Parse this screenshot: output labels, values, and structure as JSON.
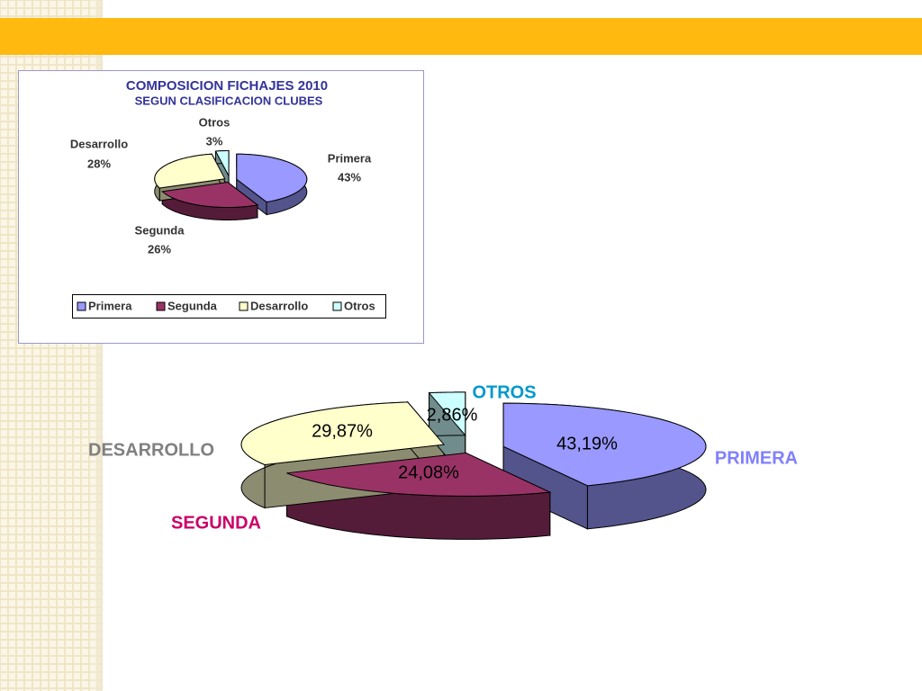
{
  "chart_data": [
    {
      "type": "pie3d",
      "title": "COMPOSICION FICHAJES 2010",
      "subtitle": "SEGUN CLASIFICACION CLUBES",
      "categories": [
        "Primera",
        "Segunda",
        "Desarrollo",
        "Otros"
      ],
      "values": [
        43,
        26,
        28,
        3
      ],
      "value_labels": [
        "43%",
        "26%",
        "28%",
        "3%"
      ],
      "colors": [
        "#9999ff",
        "#993366",
        "#ffffcc",
        "#ccffff"
      ],
      "legend": "bottom"
    },
    {
      "type": "pie3d",
      "categories": [
        "PRIMERA",
        "SEGUNDA",
        "DESARROLLO",
        "OTROS"
      ],
      "values": [
        43.19,
        24.08,
        29.87,
        2.86
      ],
      "value_labels": [
        "43,19%",
        "24,08%",
        "29,87%",
        "2,86%"
      ],
      "colors": [
        "#9999ff",
        "#993366",
        "#ffffcc",
        "#ccffff"
      ],
      "label_colors": [
        "#8080ff",
        "#cc0066",
        "#808080",
        "#0099cc"
      ]
    }
  ]
}
